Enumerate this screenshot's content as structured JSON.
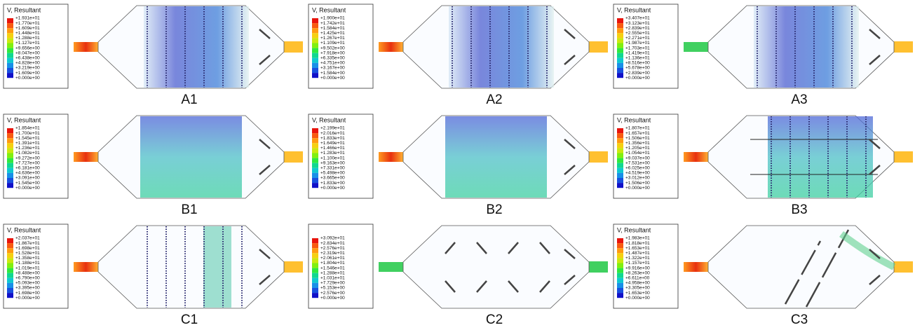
{
  "panels": [
    {
      "label": "A1",
      "legend": {
        "title": "V, Resultant",
        "ticks": [
          "+1.931e+01",
          "+1.770e+01",
          "+1.609e+01",
          "+1.448e+01",
          "+1.288e+01",
          "+1.127e+01",
          "+9.656e+00",
          "+8.047e+00",
          "+6.438e+00",
          "+4.828e+00",
          "+3.219e+00",
          "+1.609e+00",
          "+0.000e+00"
        ]
      }
    },
    {
      "label": "A2",
      "legend": {
        "title": "V, Resultant",
        "ticks": [
          "+1.900e+01",
          "+1.742e+01",
          "+1.584e+01",
          "+1.425e+01",
          "+1.267e+01",
          "+1.109e+01",
          "+9.502e+00",
          "+7.918e+00",
          "+6.335e+00",
          "+4.751e+00",
          "+3.167e+00",
          "+1.584e+00",
          "+0.000e+00"
        ]
      }
    },
    {
      "label": "A3",
      "legend": {
        "title": "V, Resultant",
        "ticks": [
          "+3.407e+01",
          "+3.123e+01",
          "+2.839e+01",
          "+2.555e+01",
          "+2.271e+01",
          "+1.987e+01",
          "+1.703e+01",
          "+1.419e+01",
          "+1.136e+01",
          "+8.516e+00",
          "+5.678e+00",
          "+2.839e+00",
          "+0.000e+00"
        ]
      }
    },
    {
      "label": "B1",
      "legend": {
        "title": "V, Resultant",
        "ticks": [
          "+1.854e+01",
          "+1.700e+01",
          "+1.545e+01",
          "+1.391e+01",
          "+1.236e+01",
          "+1.082e+01",
          "+9.272e+00",
          "+7.727e+00",
          "+6.181e+00",
          "+4.636e+00",
          "+3.091e+00",
          "+1.545e+00",
          "+0.000e+00"
        ]
      }
    },
    {
      "label": "B2",
      "legend": {
        "title": "V, Resultant",
        "ticks": [
          "+2.199e+01",
          "+2.016e+01",
          "+1.833e+01",
          "+1.649e+01",
          "+1.466e+01",
          "+1.283e+01",
          "+1.100e+01",
          "+9.163e+00",
          "+7.331e+00",
          "+5.498e+00",
          "+3.665e+00",
          "+1.833e+00",
          "+0.000e+00"
        ]
      }
    },
    {
      "label": "B3",
      "legend": {
        "title": "V, Resultant",
        "ticks": [
          "+1.807e+01",
          "+1.657e+01",
          "+1.506e+01",
          "+1.356e+01",
          "+1.205e+01",
          "+1.054e+01",
          "+9.037e+00",
          "+7.531e+00",
          "+6.025e+00",
          "+4.519e+00",
          "+3.012e+00",
          "+1.506e+00",
          "+0.000e+00"
        ]
      }
    },
    {
      "label": "C1",
      "legend": {
        "title": "V, Resultant",
        "ticks": [
          "+2.037e+01",
          "+1.867e+01",
          "+1.698e+01",
          "+1.528e+01",
          "+1.358e+01",
          "+1.188e+01",
          "+1.019e+01",
          "+8.488e+00",
          "+6.790e+00",
          "+5.093e+00",
          "+3.395e+00",
          "+1.698e+00",
          "+0.000e+00"
        ]
      }
    },
    {
      "label": "C2",
      "legend": {
        "ticks": [
          "+3.092e+01",
          "+2.834e+01",
          "+2.576e+01",
          "+2.319e+01",
          "+2.061e+01",
          "+1.804e+01",
          "+1.546e+01",
          "+1.288e+01",
          "+1.031e+01",
          "+7.729e+00",
          "+5.153e+00",
          "+2.576e+00",
          "+0.000e+00"
        ]
      }
    },
    {
      "label": "C3",
      "legend": {
        "title": "V, Resultant",
        "ticks": [
          "+1.983e+01",
          "+1.818e+01",
          "+1.653e+01",
          "+1.487e+01",
          "+1.322e+01",
          "+1.157e+01",
          "+9.916e+00",
          "+8.263e+00",
          "+6.611e+00",
          "+4.958e+00",
          "+3.305e+00",
          "+1.653e+00",
          "+0.000e+00"
        ]
      }
    }
  ]
}
